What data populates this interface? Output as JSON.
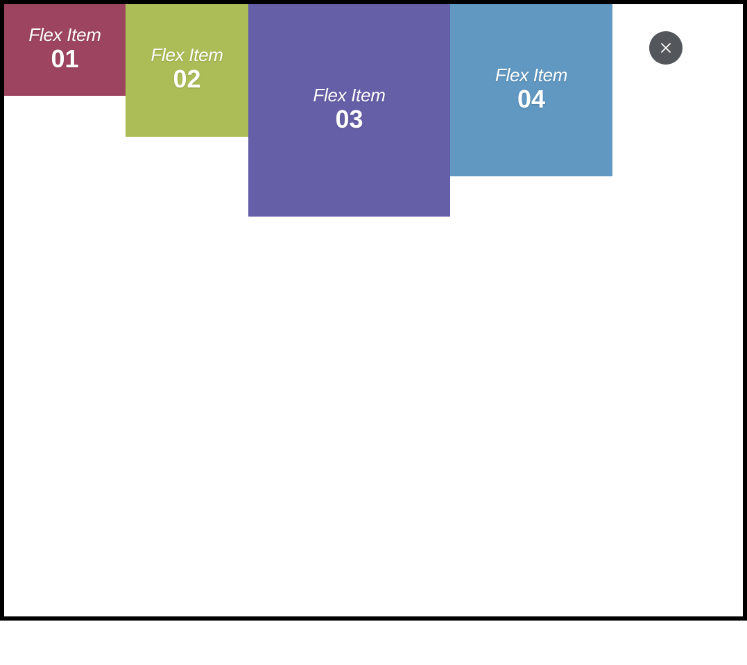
{
  "flex_items": [
    {
      "label": "Flex Item",
      "number": "01",
      "color": "#9d4560"
    },
    {
      "label": "Flex Item",
      "number": "02",
      "color": "#acbc56"
    },
    {
      "label": "Flex Item",
      "number": "03",
      "color": "#655fa8"
    },
    {
      "label": "Flex Item",
      "number": "04",
      "color": "#6098c2"
    }
  ],
  "close_button": {
    "icon": "close-icon",
    "color": "#53575b"
  }
}
